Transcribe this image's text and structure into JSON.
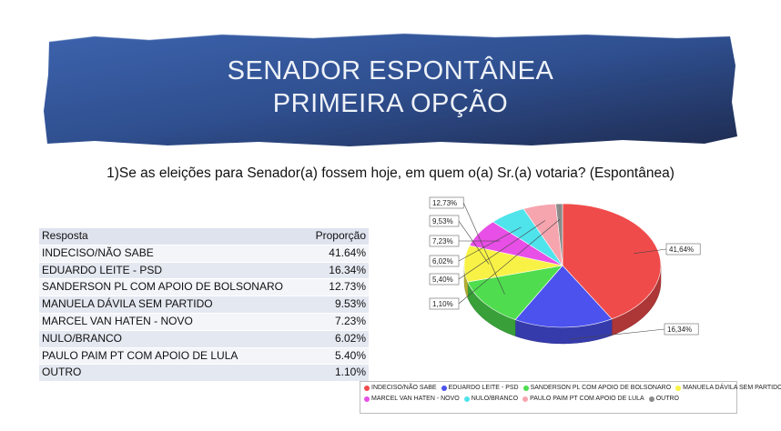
{
  "banner": {
    "title_line1": "SENADOR ESPONTÂNEA",
    "title_line2": "PRIMEIRA OPÇÃO"
  },
  "question": "1)Se as eleições para Senador(a) fossem hoje, em quem o(a) Sr.(a) votaria? (Espontânea)",
  "table": {
    "header": {
      "col1": "Resposta",
      "col2": "Proporção"
    },
    "rows": [
      {
        "label": "INDECISO/NÃO SABE",
        "value": "41.64%"
      },
      {
        "label": "EDUARDO LEITE - PSD",
        "value": "16.34%"
      },
      {
        "label": "SANDERSON  PL  COM APOIO DE BOLSONARO",
        "value": "12.73%"
      },
      {
        "label": "MANUELA DÁVILA  SEM PARTIDO",
        "value": "9.53%"
      },
      {
        "label": "MARCEL VAN HATEN - NOVO",
        "value": "7.23%"
      },
      {
        "label": "NULO/BRANCO",
        "value": "6.02%"
      },
      {
        "label": "PAULO PAIM  PT  COM APOIO DE LULA",
        "value": "5.40%"
      },
      {
        "label": "OUTRO",
        "value": "1.10%"
      }
    ]
  },
  "chart_data": {
    "type": "pie",
    "categories": [
      "INDECISO/NÃO SABE",
      "EDUARDO LEITE - PSD",
      "SANDERSON  PL  COM APOIO DE BOLSONARO",
      "MANUELA DÁVILA  SEM PARTIDO",
      "MARCEL VAN HATEN - NOVO",
      "NULO/BRANCO",
      "PAULO PAIM  PT  COM APOIO DE LULA",
      "OUTRO"
    ],
    "values": [
      41.64,
      16.34,
      12.73,
      9.53,
      7.23,
      6.02,
      5.4,
      1.1
    ],
    "data_labels": [
      "41,64%",
      "16,34%",
      "12,73%",
      "9,53%",
      "7,23%",
      "6,02%",
      "5,40%",
      "1,10%"
    ],
    "colors": [
      "#f04b4b",
      "#4b52ee",
      "#4fdd4f",
      "#f8f246",
      "#e84fe6",
      "#4fe3ec",
      "#f6a4ae",
      "#8a8a8a"
    ],
    "legend_position": "bottom",
    "legend_labels": [
      "INDECISO/NÃO SABE",
      "EDUARDO LEITE - PSD",
      "SANDERSON  PL  COM APOIO DE BOLSONARO",
      "MANUELA DÁVILA  SEM PARTIDO",
      "MARCEL VAN HATEN - NOVO",
      "NULO/BRANCO",
      "PAULO PAIM  PT  COM APOIO DE LULA",
      "OUTRO"
    ]
  },
  "colors": {
    "banner": "#3a5a9c",
    "banner_dark": "#1f2f55"
  }
}
